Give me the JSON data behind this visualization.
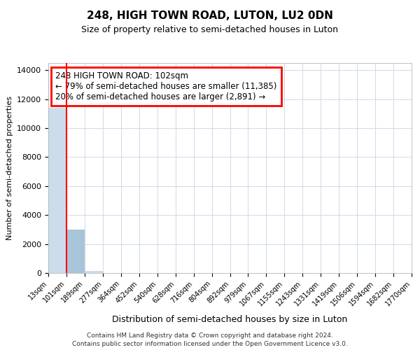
{
  "title1": "248, HIGH TOWN ROAD, LUTON, LU2 0DN",
  "title2": "Size of property relative to semi-detached houses in Luton",
  "xlabel": "Distribution of semi-detached houses by size in Luton",
  "ylabel": "Number of semi-detached properties",
  "annotation_title": "248 HIGH TOWN ROAD: 102sqm",
  "annotation_line1": "← 79% of semi-detached houses are smaller (11,385)",
  "annotation_line2": "20% of semi-detached houses are larger (2,891) →",
  "footer1": "Contains HM Land Registry data © Crown copyright and database right 2024.",
  "footer2": "Contains public sector information licensed under the Open Government Licence v3.0.",
  "property_sqm": 102,
  "bar_edges": [
    13,
    101,
    189,
    277,
    364,
    452,
    540,
    628,
    716,
    804,
    892,
    979,
    1067,
    1155,
    1243,
    1331,
    1419,
    1506,
    1594,
    1682,
    1770
  ],
  "bar_labels": [
    "13sqm",
    "101sqm",
    "189sqm",
    "277sqm",
    "364sqm",
    "452sqm",
    "540sqm",
    "628sqm",
    "716sqm",
    "804sqm",
    "892sqm",
    "979sqm",
    "1067sqm",
    "1155sqm",
    "1243sqm",
    "1331sqm",
    "1419sqm",
    "1506sqm",
    "1594sqm",
    "1682sqm",
    "1770sqm"
  ],
  "bar_heights": [
    11400,
    3000,
    130,
    10,
    5,
    3,
    2,
    1,
    1,
    1,
    0,
    0,
    0,
    0,
    0,
    0,
    0,
    0,
    0,
    0
  ],
  "bar_color": "#ccdcec",
  "highlight_bar_index": 1,
  "highlight_bar_color": "#a8c4d8",
  "redline_x": 101,
  "ylim": [
    0,
    14500
  ],
  "yticks": [
    0,
    2000,
    4000,
    6000,
    8000,
    10000,
    12000,
    14000
  ],
  "grid_color": "#d0d8e8",
  "box_color": "red",
  "bg_color": "#ffffff",
  "title1_fontsize": 11,
  "title2_fontsize": 9,
  "ylabel_fontsize": 8,
  "xlabel_fontsize": 9,
  "annotation_fontsize": 8.5,
  "footer_fontsize": 6.5
}
